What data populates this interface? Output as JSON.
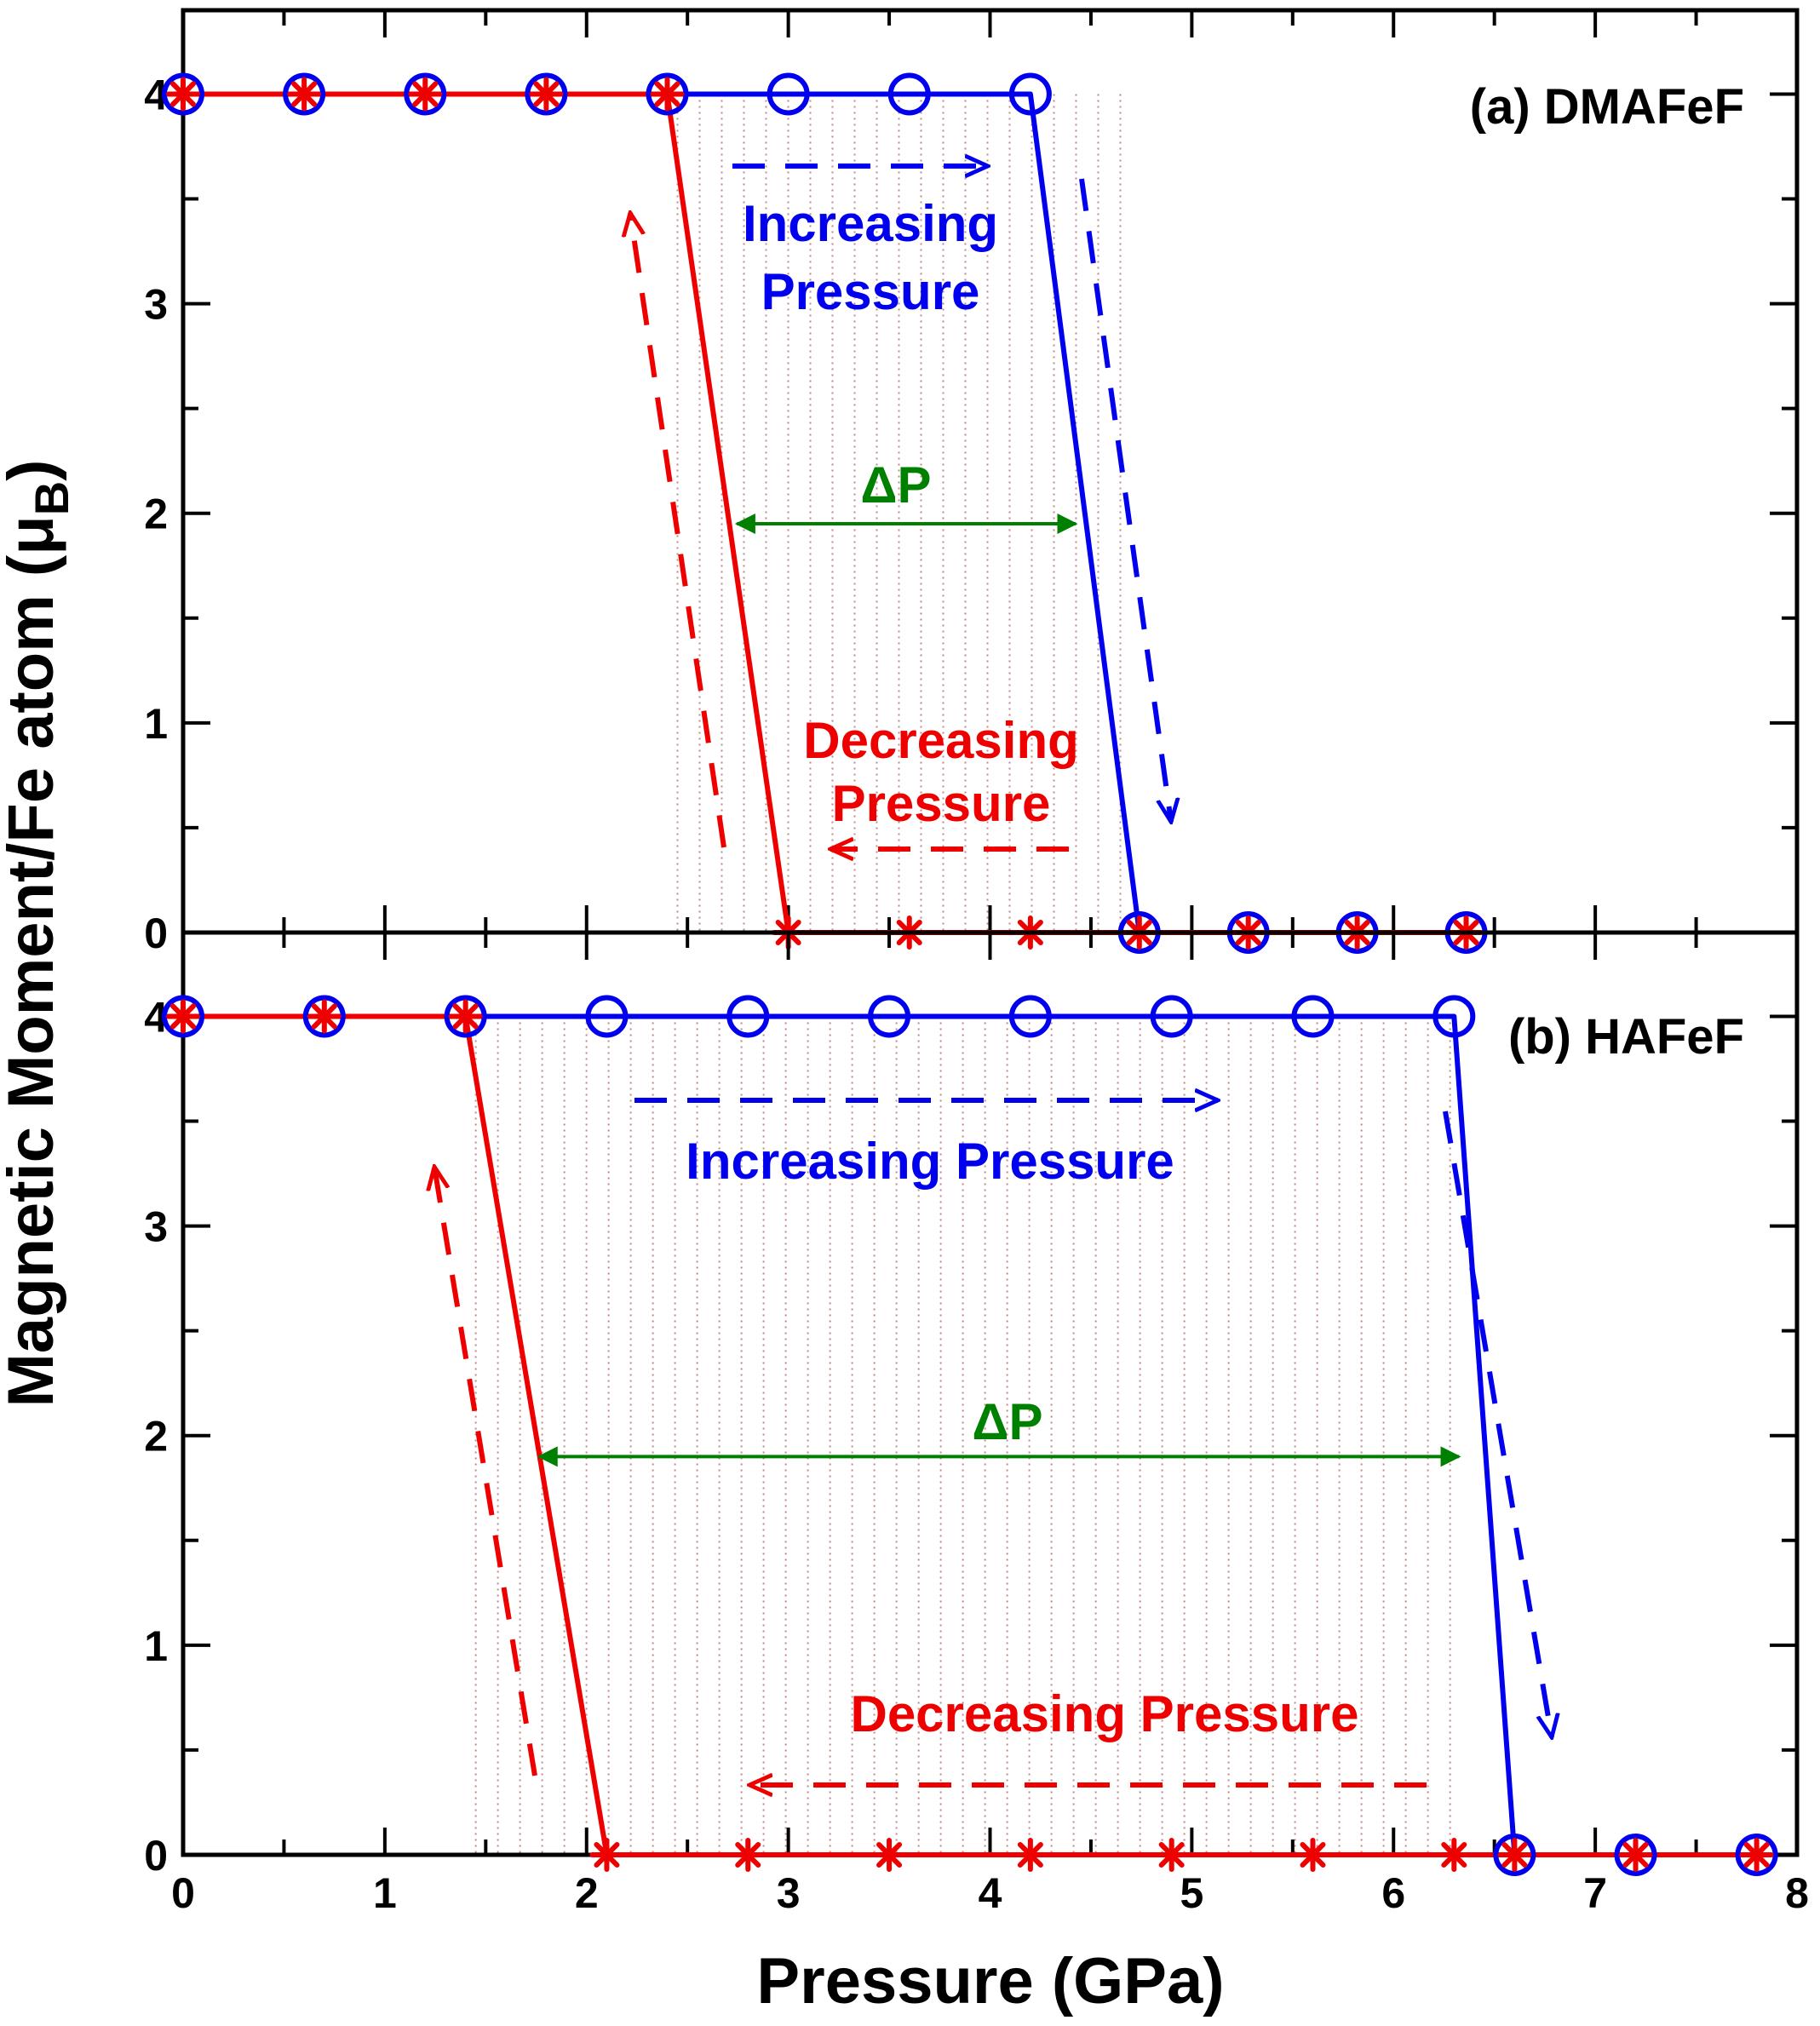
{
  "chart_data": [
    {
      "type": "line",
      "panel_label": "(a) DMAFeF",
      "xlim": [
        0,
        8
      ],
      "ylim": [
        0,
        4.4
      ],
      "series": [
        {
          "color": "#0000ee",
          "marker": "circle",
          "points": [
            [
              0,
              4
            ],
            [
              0.6,
              4
            ],
            [
              1.2,
              4
            ],
            [
              1.8,
              4
            ],
            [
              2.4,
              4
            ],
            [
              3.0,
              4
            ],
            [
              3.6,
              4
            ],
            [
              4.2,
              4
            ],
            [
              4.74,
              0
            ],
            [
              5.28,
              0
            ],
            [
              5.82,
              0
            ],
            [
              6.36,
              0
            ]
          ],
          "shown_markers": [
            [
              0,
              4
            ],
            [
              0.6,
              4
            ],
            [
              1.2,
              4
            ],
            [
              1.8,
              4
            ],
            [
              2.4,
              4
            ],
            [
              3.0,
              4
            ],
            [
              3.6,
              4
            ],
            [
              4.2,
              4
            ],
            [
              4.74,
              0
            ],
            [
              5.28,
              0
            ],
            [
              5.82,
              0
            ],
            [
              6.36,
              0
            ]
          ]
        },
        {
          "color": "#ee0000",
          "marker": "asterisk",
          "points": [
            [
              0,
              4
            ],
            [
              0.6,
              4
            ],
            [
              1.2,
              4
            ],
            [
              1.8,
              4
            ],
            [
              2.4,
              4
            ],
            [
              3.0,
              0
            ],
            [
              3.6,
              0
            ],
            [
              4.2,
              0
            ],
            [
              4.74,
              0
            ],
            [
              5.28,
              0
            ],
            [
              5.82,
              0
            ],
            [
              6.36,
              0
            ]
          ],
          "shown_markers": [
            [
              0,
              4
            ],
            [
              0.6,
              4
            ],
            [
              1.2,
              4
            ],
            [
              1.8,
              4
            ],
            [
              2.4,
              4
            ],
            [
              3.0,
              0
            ],
            [
              3.6,
              0
            ],
            [
              4.2,
              0
            ],
            [
              4.74,
              0
            ],
            [
              5.28,
              0
            ],
            [
              5.82,
              0
            ],
            [
              6.36,
              0
            ]
          ]
        }
      ],
      "hatch_range": [
        2.4,
        4.7
      ],
      "annotations": {
        "increasing": {
          "lines": [
            "Increasing",
            "Pressure"
          ],
          "color": "#0000ee"
        },
        "decreasing": {
          "lines": [
            "Decreasing",
            "Pressure"
          ],
          "color": "#ee0000"
        },
        "delta_p": {
          "text": "ΔP",
          "color": "#008000",
          "from": [
            2.72,
            1.95
          ],
          "to": [
            4.45,
            1.95
          ]
        }
      }
    },
    {
      "type": "line",
      "panel_label": "(b) HAFeF",
      "xlim": [
        0,
        8
      ],
      "ylim": [
        0,
        4.4
      ],
      "series": [
        {
          "color": "#0000ee",
          "marker": "circle",
          "points": [
            [
              0,
              4
            ],
            [
              0.7,
              4
            ],
            [
              1.4,
              4
            ],
            [
              2.1,
              4
            ],
            [
              2.8,
              4
            ],
            [
              3.5,
              4
            ],
            [
              4.2,
              4
            ],
            [
              4.9,
              4
            ],
            [
              5.6,
              4
            ],
            [
              6.3,
              4
            ],
            [
              6.6,
              0
            ],
            [
              7.2,
              0
            ],
            [
              7.8,
              0
            ]
          ],
          "shown_markers": [
            [
              0,
              4
            ],
            [
              0.7,
              4
            ],
            [
              1.4,
              4
            ],
            [
              2.1,
              4
            ],
            [
              2.8,
              4
            ],
            [
              3.5,
              4
            ],
            [
              4.2,
              4
            ],
            [
              4.9,
              4
            ],
            [
              5.6,
              4
            ],
            [
              6.3,
              4
            ],
            [
              6.6,
              0
            ],
            [
              7.2,
              0
            ],
            [
              7.8,
              0
            ]
          ]
        },
        {
          "color": "#ee0000",
          "marker": "asterisk",
          "points": [
            [
              0,
              4
            ],
            [
              0.7,
              4
            ],
            [
              1.4,
              4
            ],
            [
              2.1,
              0
            ],
            [
              2.8,
              0
            ],
            [
              3.5,
              0
            ],
            [
              4.2,
              0
            ],
            [
              4.9,
              0
            ],
            [
              5.6,
              0
            ],
            [
              6.3,
              0
            ],
            [
              6.6,
              0
            ],
            [
              7.2,
              0
            ],
            [
              7.8,
              0
            ]
          ],
          "shown_markers": [
            [
              0,
              4
            ],
            [
              0.7,
              4
            ],
            [
              1.4,
              4
            ],
            [
              2.1,
              0
            ],
            [
              2.8,
              0
            ],
            [
              3.5,
              0
            ],
            [
              4.2,
              0
            ],
            [
              4.9,
              0
            ],
            [
              5.6,
              0
            ],
            [
              6.3,
              0
            ],
            [
              6.6,
              0
            ],
            [
              7.2,
              0
            ],
            [
              7.8,
              0
            ]
          ]
        }
      ],
      "hatch_range": [
        1.4,
        6.35
      ],
      "annotations": {
        "increasing": {
          "lines": [
            "Increasing Pressure"
          ],
          "color": "#0000ee"
        },
        "decreasing": {
          "lines": [
            "Decreasing Pressure"
          ],
          "color": "#ee0000"
        },
        "delta_p": {
          "text": "ΔP",
          "color": "#008000",
          "from": [
            1.74,
            1.9
          ],
          "to": [
            6.35,
            1.9
          ]
        }
      }
    }
  ],
  "x_ticks": [
    "0",
    "1",
    "2",
    "3",
    "4",
    "5",
    "6",
    "7",
    "8"
  ],
  "y_ticks": [
    "0",
    "1",
    "2",
    "3",
    "4"
  ],
  "xlabel": "Pressure (GPa)",
  "ylabel_main": "Magnetic Moment/Fe atom (μ",
  "ylabel_sub": "B",
  "ylabel_close": ")"
}
